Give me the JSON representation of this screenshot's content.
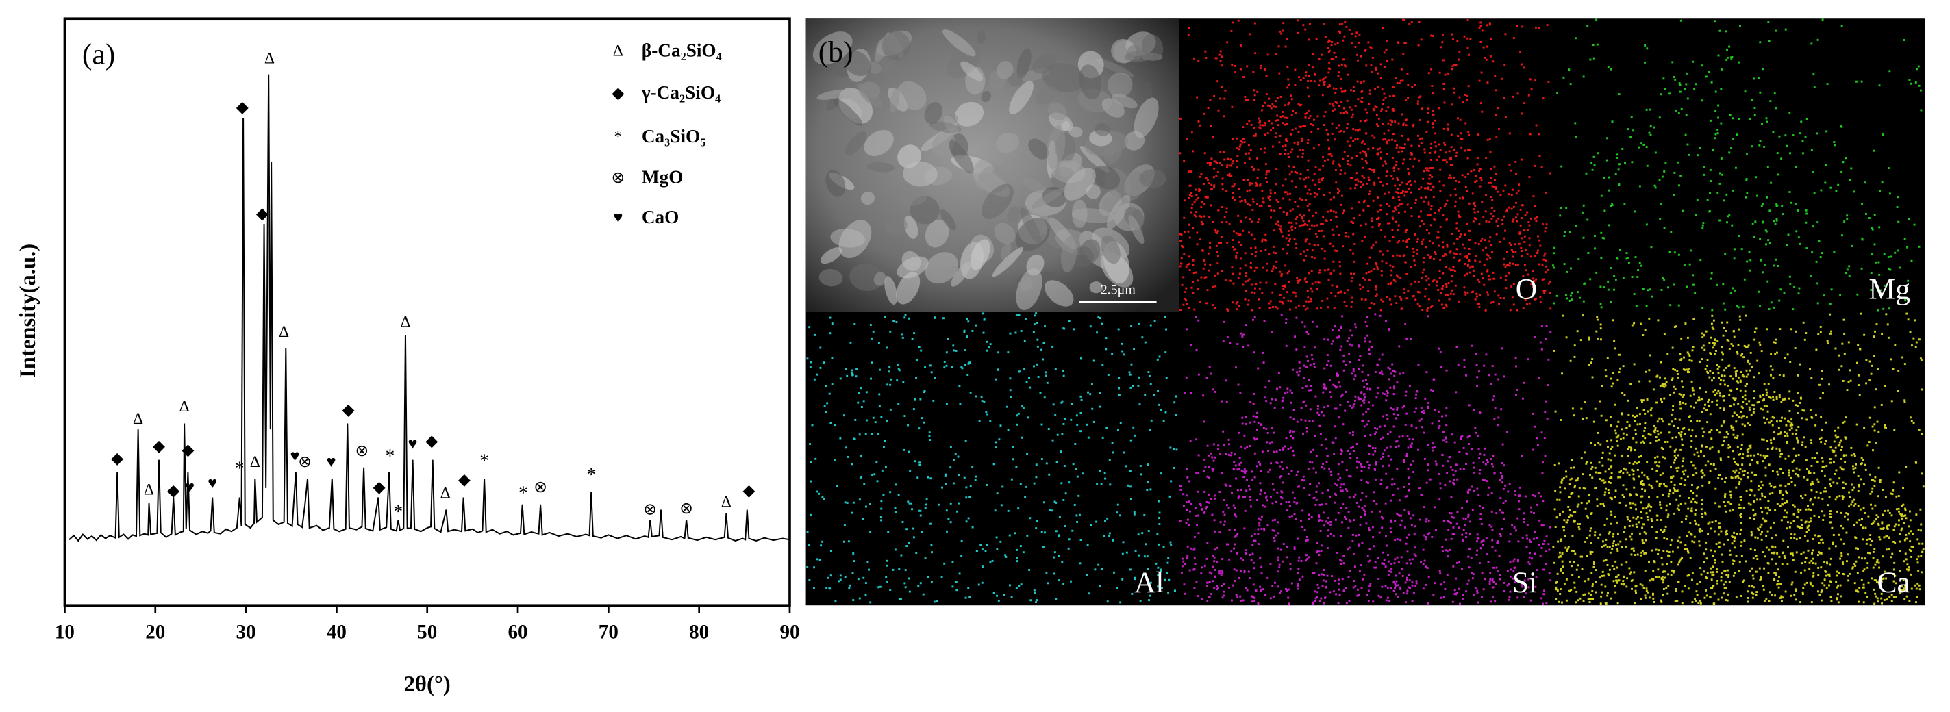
{
  "chart_data": {
    "type": "line",
    "label": "(a)",
    "xlabel": "2θ(°)",
    "ylabel": "Intensity(a.u.)",
    "color": "#000000",
    "xlim": [
      10,
      90
    ],
    "xticks": [
      10,
      20,
      30,
      40,
      50,
      60,
      70,
      80,
      90
    ],
    "ylim": [
      0,
      100
    ],
    "x": [
      10.5,
      11,
      11.5,
      12,
      12.5,
      13,
      13.5,
      14,
      14.5,
      15,
      15.6,
      15.8,
      16.0,
      16.5,
      17,
      17.5,
      17.9,
      18.1,
      18.3,
      18.8,
      19.2,
      19.3,
      19.5,
      20.2,
      20.4,
      20.6,
      21.2,
      21.8,
      22.0,
      22.2,
      22.8,
      23.1,
      23.2,
      23.4,
      23.6,
      23.8,
      24.5,
      25.2,
      25.8,
      26.1,
      26.3,
      26.5,
      27.2,
      27.8,
      28.4,
      29.0,
      29.3,
      29.5,
      29.7,
      29.9,
      30.5,
      30.9,
      31.0,
      31.2,
      31.8,
      32.0,
      32.2,
      32.5,
      32.7,
      32.8,
      33.0,
      33.6,
      34.2,
      34.4,
      34.6,
      35.1,
      35.5,
      35.7,
      36.2,
      36.5,
      36.8,
      37.0,
      37.8,
      38.5,
      39.2,
      39.5,
      39.7,
      40.3,
      41.0,
      41.2,
      41.4,
      42.2,
      42.8,
      43.0,
      43.2,
      44.0,
      44.6,
      44.8,
      45.5,
      45.8,
      46.0,
      46.6,
      46.8,
      47.0,
      47.4,
      47.6,
      47.8,
      48.2,
      48.4,
      48.6,
      49.3,
      50.0,
      50.4,
      50.6,
      50.8,
      51.5,
      52.1,
      52.3,
      53.0,
      53.8,
      54.0,
      54.2,
      55.0,
      55.6,
      56.1,
      56.3,
      56.5,
      57.2,
      58.0,
      58.8,
      59.5,
      60.3,
      60.5,
      60.7,
      61.5,
      62.3,
      62.5,
      62.7,
      63.5,
      64.5,
      65.5,
      66.5,
      67.5,
      67.9,
      68.1,
      68.3,
      69.2,
      70.0,
      71.0,
      72.0,
      73.0,
      74.0,
      74.4,
      74.6,
      74.8,
      75.6,
      75.8,
      76.0,
      77.0,
      78.0,
      78.4,
      78.6,
      78.8,
      79.8,
      80.8,
      81.8,
      82.8,
      83.0,
      83.2,
      84.0,
      84.8,
      85.1,
      85.3,
      85.5,
      86.3,
      87.2,
      88.2,
      89.2,
      90.0
    ],
    "values": [
      11.2,
      11.9,
      11.0,
      12.1,
      11.3,
      11.8,
      11.1,
      12.0,
      11.4,
      11.9,
      11.5,
      22.7,
      11.6,
      12.1,
      11.3,
      12.0,
      11.8,
      30.0,
      11.9,
      12.2,
      12.0,
      17.4,
      12.1,
      12.3,
      24.8,
      12.4,
      11.6,
      12.2,
      18.4,
      12.0,
      12.5,
      12.6,
      31.0,
      13.0,
      22.7,
      12.8,
      12.1,
      12.6,
      12.3,
      12.7,
      18.4,
      12.4,
      12.2,
      13.0,
      12.6,
      13.2,
      18.4,
      13.5,
      83.0,
      13.8,
      13.2,
      14.0,
      21.6,
      14.2,
      15.0,
      65.0,
      20.0,
      90.5,
      30.0,
      75.6,
      14.5,
      13.8,
      14.2,
      43.9,
      14.0,
      13.5,
      22.7,
      13.8,
      13.3,
      17.0,
      21.6,
      13.2,
      13.6,
      12.8,
      13.2,
      21.6,
      13.0,
      12.6,
      13.0,
      31.0,
      13.2,
      12.9,
      13.4,
      23.5,
      13.1,
      12.7,
      18.4,
      12.9,
      13.3,
      22.7,
      13.0,
      12.7,
      14.5,
      12.8,
      13.1,
      46.0,
      13.2,
      13.1,
      24.8,
      13.0,
      12.6,
      13.2,
      13.4,
      24.8,
      13.1,
      12.5,
      16.3,
      12.6,
      12.9,
      12.6,
      18.4,
      12.7,
      13.0,
      12.4,
      12.7,
      21.6,
      12.5,
      12.9,
      12.2,
      12.6,
      12.0,
      12.3,
      17.2,
      12.1,
      12.5,
      12.2,
      17.2,
      12.0,
      12.4,
      11.8,
      12.2,
      11.7,
      12.1,
      11.9,
      19.3,
      11.8,
      11.5,
      12.0,
      11.4,
      11.9,
      11.3,
      11.8,
      11.6,
      14.6,
      11.7,
      11.9,
      16.3,
      11.6,
      11.2,
      11.7,
      11.4,
      14.6,
      11.5,
      11.1,
      11.6,
      11.2,
      11.6,
      15.7,
      11.5,
      11.0,
      11.4,
      11.2,
      16.3,
      11.4,
      11.0,
      11.5,
      11.1,
      11.4,
      11.2
    ],
    "annotations": [
      {
        "x": 18.1,
        "y": 31.6,
        "label": "Δ"
      },
      {
        "x": 19.3,
        "y": 19.5,
        "label": "Δ"
      },
      {
        "x": 15.8,
        "y": 24.8,
        "label": "◆"
      },
      {
        "x": 20.4,
        "y": 26.9,
        "label": "◆"
      },
      {
        "x": 22.0,
        "y": 19.3,
        "label": "◆"
      },
      {
        "x": 23.2,
        "y": 33.7,
        "label": "Δ"
      },
      {
        "x": 23.6,
        "y": 26.3,
        "label": "◆"
      },
      {
        "x": 23.8,
        "y": 19.9,
        "label": "♥"
      },
      {
        "x": 26.3,
        "y": 20.6,
        "label": "♥"
      },
      {
        "x": 29.3,
        "y": 23.1,
        "label": "*"
      },
      {
        "x": 29.6,
        "y": 84.7,
        "label": "◆"
      },
      {
        "x": 31.0,
        "y": 24.2,
        "label": "Δ"
      },
      {
        "x": 31.8,
        "y": 66.5,
        "label": "◆"
      },
      {
        "x": 32.6,
        "y": 93,
        "label": "Δ"
      },
      {
        "x": 34.2,
        "y": 46.4,
        "label": "Δ"
      },
      {
        "x": 35.4,
        "y": 25.2,
        "label": "♥"
      },
      {
        "x": 36.5,
        "y": 24.2,
        "label": "⊗"
      },
      {
        "x": 39.4,
        "y": 24.2,
        "label": "♥"
      },
      {
        "x": 41.3,
        "y": 33.1,
        "label": "◆"
      },
      {
        "x": 42.8,
        "y": 26.1,
        "label": "⊗"
      },
      {
        "x": 44.7,
        "y": 19.9,
        "label": "◆"
      },
      {
        "x": 45.9,
        "y": 25.2,
        "label": "*"
      },
      {
        "x": 46.8,
        "y": 15.7,
        "label": "*"
      },
      {
        "x": 47.6,
        "y": 48.1,
        "label": "Δ"
      },
      {
        "x": 48.4,
        "y": 27.3,
        "label": "♥"
      },
      {
        "x": 50.5,
        "y": 27.8,
        "label": "◆"
      },
      {
        "x": 52.0,
        "y": 18.9,
        "label": "Δ"
      },
      {
        "x": 54.1,
        "y": 21.2,
        "label": "◆"
      },
      {
        "x": 56.3,
        "y": 24.4,
        "label": "*"
      },
      {
        "x": 60.6,
        "y": 18.9,
        "label": "*"
      },
      {
        "x": 62.5,
        "y": 19.9,
        "label": "⊗"
      },
      {
        "x": 68.1,
        "y": 22.0,
        "label": "*"
      },
      {
        "x": 74.6,
        "y": 16.1,
        "label": "⊗"
      },
      {
        "x": 78.6,
        "y": 16.3,
        "label": "⊗"
      },
      {
        "x": 83.0,
        "y": 17.4,
        "label": "Δ"
      },
      {
        "x": 85.5,
        "y": 19.3,
        "label": "◆"
      }
    ],
    "legend": [
      {
        "symbol": "Δ",
        "name": "β-Ca₂SiO₄"
      },
      {
        "symbol": "◆",
        "name": "γ-Ca₂SiO₄"
      },
      {
        "symbol": "*",
        "name": "Ca₃SiO₅"
      },
      {
        "symbol": "⊗",
        "name": "MgO"
      },
      {
        "symbol": "♥",
        "name": "CaO"
      }
    ]
  },
  "panel_b": {
    "label": "(b)",
    "scale_bar": "2.5μm",
    "maps": [
      {
        "label": "O",
        "color": "#e81818"
      },
      {
        "label": "Mg",
        "color": "#1ec81e"
      },
      {
        "label": "Al",
        "color": "#1ec8c8"
      },
      {
        "label": "Si",
        "color": "#c81ec8"
      },
      {
        "label": "Ca",
        "color": "#d2d21e"
      }
    ]
  }
}
